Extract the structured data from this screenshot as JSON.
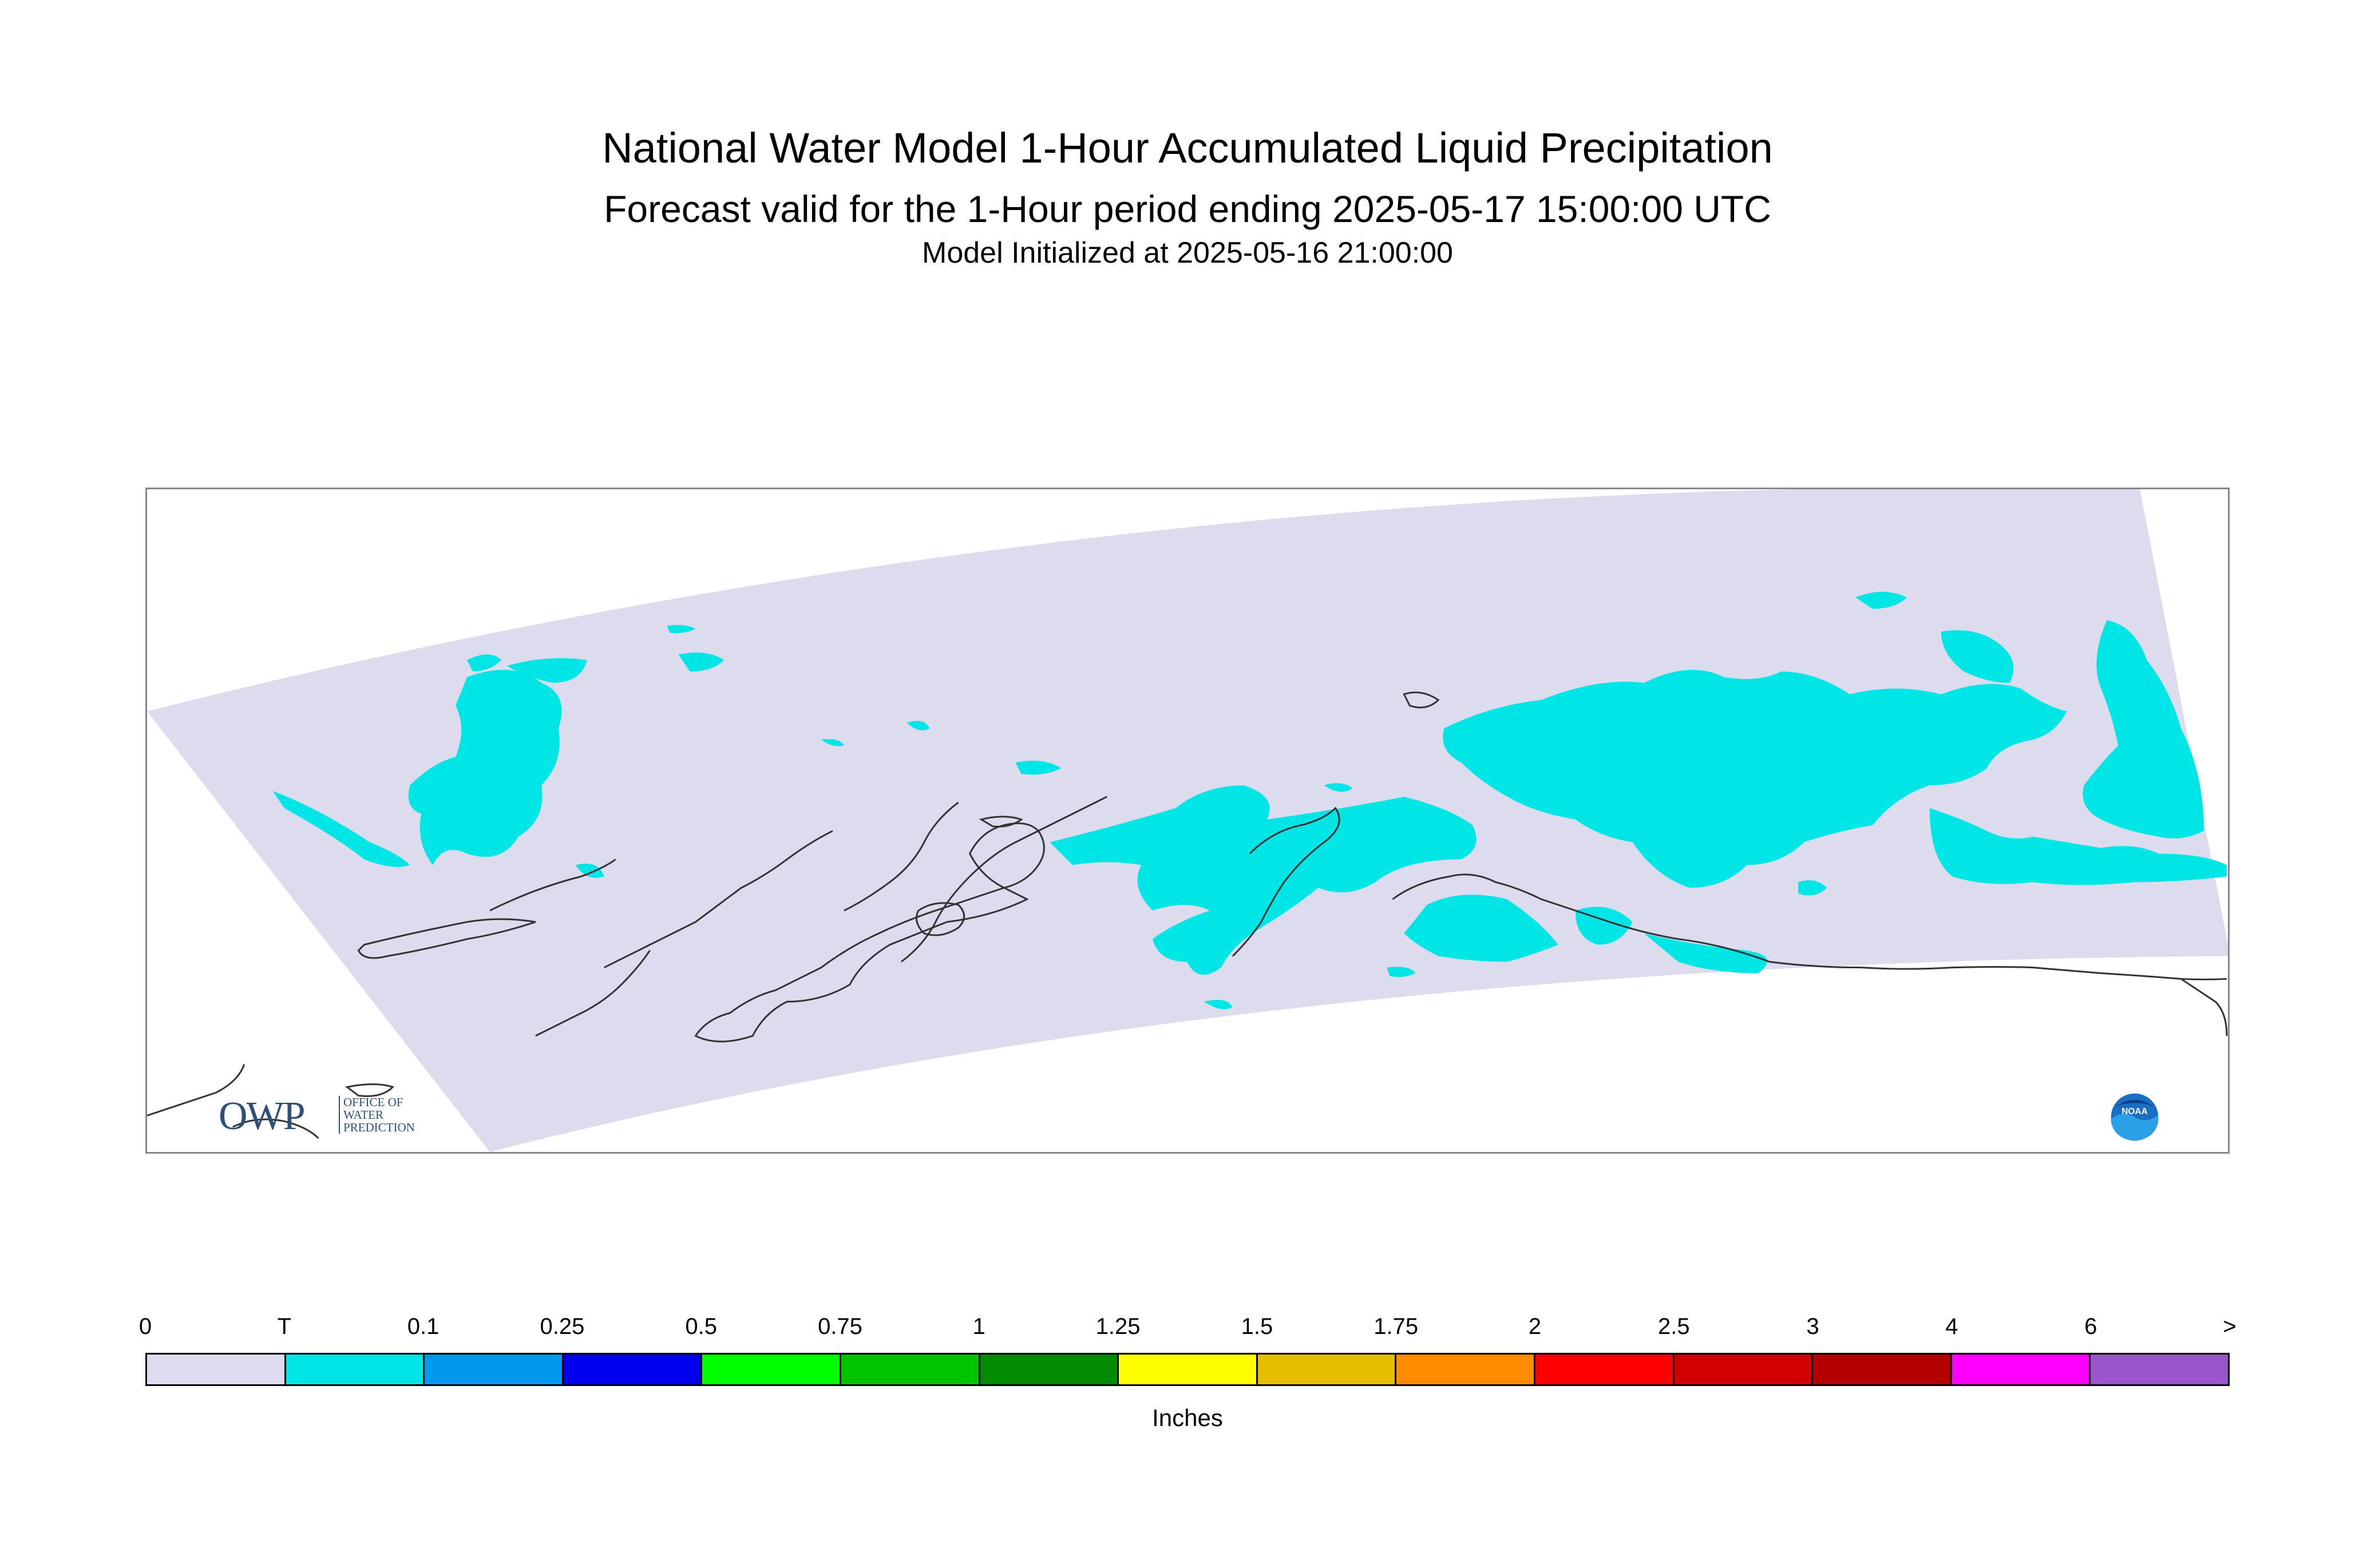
{
  "title": "National Water Model 1-Hour Accumulated Liquid Precipitation",
  "subtitle": "Forecast valid for the 1-Hour period ending 2025-05-17 15:00:00 UTC",
  "initialized": "Model Initialized at 2025-05-16 21:00:00",
  "map": {
    "domain_fill_color": "#dcdcee",
    "precip_color": "#00e5e5",
    "coastline_color": "#333333",
    "owp_logo": {
      "big_text": "OWP",
      "small_line1": "OFFICE OF",
      "small_line2": "WATER",
      "small_line3": "PREDICTION"
    },
    "noaa_logo": {
      "text": "NOAA",
      "icon": "noaa-logo-icon"
    }
  },
  "legend": {
    "tick_labels": [
      "0",
      "T",
      "0.1",
      "0.25",
      "0.5",
      "0.75",
      "1",
      "1.25",
      "1.5",
      "1.75",
      "2",
      "2.5",
      "3",
      "4",
      "6",
      ">"
    ],
    "colors": [
      "#dcdcee",
      "#00e5e5",
      "#0099ee",
      "#0000ee",
      "#00ff00",
      "#00c400",
      "#008b00",
      "#ffff00",
      "#e5be00",
      "#ff8c00",
      "#ff0000",
      "#d20000",
      "#b40000",
      "#ff00ff",
      "#9955cc"
    ],
    "units": "Inches"
  }
}
